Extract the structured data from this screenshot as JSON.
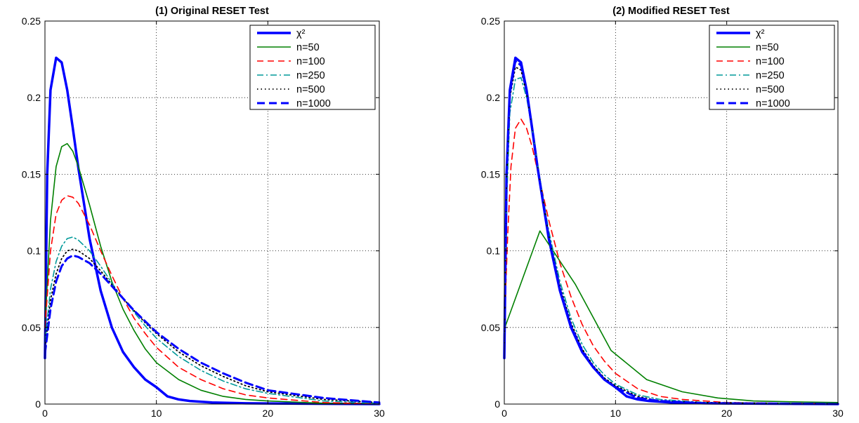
{
  "chart_data": [
    {
      "type": "line",
      "title": "(1) Original RESET Test",
      "xlabel": "",
      "ylabel": "",
      "xlim": [
        0,
        30
      ],
      "ylim": [
        0,
        0.25
      ],
      "xticks": [
        0,
        10,
        20,
        30
      ],
      "xtick_labels": [
        "0",
        "10",
        "20",
        "30"
      ],
      "yticks": [
        0,
        0.05,
        0.1,
        0.15,
        0.2,
        0.25
      ],
      "ytick_labels": [
        "0",
        "0.05",
        "0.1",
        "0.15",
        "0.2",
        "0.25"
      ],
      "grid": true,
      "legend_position": "top-right",
      "series": [
        {
          "name": "χ²",
          "color": "#0000ff",
          "style": "solid-thick",
          "x": [
            0,
            0.2,
            0.5,
            1,
            1.5,
            2,
            2.5,
            3,
            4,
            5,
            6,
            7,
            8,
            9,
            10,
            11,
            12,
            13,
            15,
            18,
            30
          ],
          "y": [
            0.03,
            0.15,
            0.205,
            0.226,
            0.223,
            0.205,
            0.18,
            0.154,
            0.108,
            0.074,
            0.05,
            0.034,
            0.024,
            0.016,
            0.011,
            0.005,
            0.003,
            0.002,
            0.001,
            0.0005,
            0
          ]
        },
        {
          "name": "n=50",
          "color": "#008000",
          "style": "solid",
          "x": [
            0,
            0.5,
            1,
            1.5,
            2,
            2.5,
            3,
            4,
            5,
            6,
            7,
            8,
            9,
            10,
            12,
            14,
            16,
            18,
            20,
            25,
            30
          ],
          "y": [
            0.05,
            0.12,
            0.155,
            0.168,
            0.17,
            0.165,
            0.155,
            0.13,
            0.103,
            0.08,
            0.062,
            0.048,
            0.036,
            0.027,
            0.016,
            0.009,
            0.005,
            0.003,
            0.002,
            0.0005,
            0
          ]
        },
        {
          "name": "n=100",
          "color": "#ff0000",
          "style": "dashed",
          "x": [
            0,
            0.5,
            1,
            1.5,
            2,
            2.5,
            3,
            4,
            5,
            6,
            7,
            8,
            9,
            10,
            12,
            14,
            16,
            18,
            20,
            25,
            30
          ],
          "y": [
            0.05,
            0.1,
            0.124,
            0.133,
            0.136,
            0.135,
            0.131,
            0.117,
            0.1,
            0.084,
            0.069,
            0.056,
            0.046,
            0.037,
            0.024,
            0.016,
            0.01,
            0.006,
            0.004,
            0.001,
            0
          ]
        },
        {
          "name": "n=250",
          "color": "#009999",
          "style": "dashdot",
          "x": [
            0,
            0.5,
            1,
            1.5,
            2,
            2.5,
            3,
            4,
            5,
            6,
            7,
            8,
            9,
            10,
            12,
            14,
            16,
            18,
            20,
            25,
            30
          ],
          "y": [
            0.04,
            0.075,
            0.093,
            0.103,
            0.108,
            0.109,
            0.107,
            0.1,
            0.09,
            0.079,
            0.069,
            0.06,
            0.051,
            0.043,
            0.031,
            0.022,
            0.015,
            0.01,
            0.007,
            0.002,
            0.0005
          ]
        },
        {
          "name": "n=500",
          "color": "#000000",
          "style": "dotted",
          "x": [
            0,
            0.5,
            1,
            1.5,
            2,
            2.5,
            3,
            4,
            5,
            6,
            7,
            8,
            9,
            10,
            12,
            14,
            16,
            18,
            20,
            25,
            30
          ],
          "y": [
            0.035,
            0.068,
            0.085,
            0.095,
            0.1,
            0.101,
            0.1,
            0.095,
            0.087,
            0.078,
            0.069,
            0.061,
            0.053,
            0.046,
            0.034,
            0.025,
            0.018,
            0.012,
            0.008,
            0.003,
            0.001
          ]
        },
        {
          "name": "n=1000",
          "color": "#0000ff",
          "style": "dashed-thick",
          "x": [
            0,
            0.5,
            1,
            1.5,
            2,
            2.5,
            3,
            4,
            5,
            6,
            7,
            8,
            9,
            10,
            12,
            14,
            16,
            18,
            20,
            25,
            30
          ],
          "y": [
            0.033,
            0.062,
            0.08,
            0.09,
            0.095,
            0.097,
            0.096,
            0.092,
            0.085,
            0.077,
            0.069,
            0.061,
            0.054,
            0.047,
            0.036,
            0.027,
            0.02,
            0.014,
            0.009,
            0.004,
            0.001
          ]
        }
      ]
    },
    {
      "type": "line",
      "title": "(2) Modified RESET Test",
      "xlabel": "",
      "ylabel": "",
      "xlim": [
        0,
        30
      ],
      "ylim": [
        0,
        0.25
      ],
      "xticks": [
        0,
        10,
        20,
        30
      ],
      "xtick_labels": [
        "0",
        "10",
        "20",
        "30"
      ],
      "yticks": [
        0,
        0.05,
        0.1,
        0.15,
        0.2,
        0.25
      ],
      "ytick_labels": [
        "0",
        "0.05",
        "0.1",
        "0.15",
        "0.2",
        "0.25"
      ],
      "grid": true,
      "legend_position": "top-right",
      "series": [
        {
          "name": "χ²",
          "color": "#0000ff",
          "style": "solid-thick",
          "x": [
            0,
            0.2,
            0.5,
            1,
            1.5,
            2,
            2.5,
            3,
            4,
            5,
            6,
            7,
            8,
            9,
            10,
            11,
            12,
            13,
            15,
            18,
            30
          ],
          "y": [
            0.03,
            0.15,
            0.205,
            0.226,
            0.223,
            0.205,
            0.18,
            0.154,
            0.108,
            0.074,
            0.05,
            0.034,
            0.024,
            0.016,
            0.011,
            0.005,
            0.003,
            0.002,
            0.001,
            0.0005,
            0
          ]
        },
        {
          "name": "n=50",
          "color": "#008000",
          "style": "solid",
          "x": [
            0,
            3.2,
            6.4,
            9.6,
            12.8,
            16,
            19.2,
            22.4,
            25.6,
            30
          ],
          "y": [
            0.049,
            0.113,
            0.078,
            0.035,
            0.016,
            0.008,
            0.004,
            0.002,
            0.0015,
            0.001
          ]
        },
        {
          "name": "n=100",
          "color": "#ff0000",
          "style": "dashed",
          "x": [
            0,
            0.3,
            0.6,
            1,
            1.5,
            2,
            2.5,
            3,
            4,
            5,
            6,
            7,
            8,
            9,
            10,
            12,
            14,
            16,
            20,
            30
          ],
          "y": [
            0.05,
            0.11,
            0.155,
            0.18,
            0.186,
            0.18,
            0.168,
            0.152,
            0.12,
            0.092,
            0.07,
            0.052,
            0.038,
            0.028,
            0.02,
            0.01,
            0.005,
            0.003,
            0.001,
            0
          ]
        },
        {
          "name": "n=250",
          "color": "#009999",
          "style": "dashdot",
          "x": [
            0,
            0.2,
            0.5,
            1,
            1.5,
            2,
            2.5,
            3,
            4,
            5,
            6,
            7,
            8,
            9,
            10,
            12,
            14,
            18,
            30
          ],
          "y": [
            0.04,
            0.13,
            0.19,
            0.212,
            0.213,
            0.2,
            0.18,
            0.156,
            0.113,
            0.08,
            0.056,
            0.039,
            0.027,
            0.019,
            0.013,
            0.006,
            0.003,
            0.001,
            0
          ]
        },
        {
          "name": "n=500",
          "color": "#000000",
          "style": "dotted",
          "x": [
            0,
            0.2,
            0.5,
            1,
            1.5,
            2,
            2.5,
            3,
            4,
            5,
            6,
            7,
            8,
            9,
            10,
            12,
            14,
            18,
            30
          ],
          "y": [
            0.035,
            0.145,
            0.2,
            0.22,
            0.218,
            0.203,
            0.18,
            0.155,
            0.11,
            0.077,
            0.053,
            0.036,
            0.025,
            0.017,
            0.012,
            0.005,
            0.002,
            0.001,
            0
          ]
        },
        {
          "name": "n=1000",
          "color": "#0000ff",
          "style": "dashed-thick",
          "x": [
            0,
            0.2,
            0.5,
            1,
            1.5,
            2,
            2.5,
            3,
            4,
            5,
            6,
            7,
            8,
            9,
            10,
            12,
            14,
            18,
            30
          ],
          "y": [
            0.033,
            0.148,
            0.203,
            0.224,
            0.221,
            0.204,
            0.18,
            0.154,
            0.109,
            0.075,
            0.051,
            0.035,
            0.024,
            0.016,
            0.011,
            0.004,
            0.002,
            0.0005,
            0
          ]
        }
      ]
    }
  ]
}
